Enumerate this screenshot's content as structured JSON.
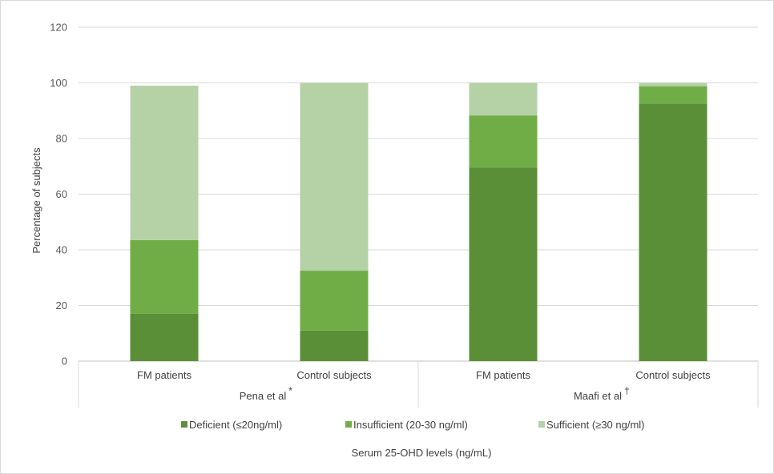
{
  "chart_data": {
    "type": "bar",
    "stacked": true,
    "ylabel": "Percentage of subjects",
    "xlabel": "Serum 25-OHD levels (ng/mL)",
    "ylim": [
      0,
      120
    ],
    "yticks": [
      0,
      20,
      40,
      60,
      80,
      100,
      120
    ],
    "grid": true,
    "legend_position": "bottom",
    "groups": [
      {
        "label": "Pena et al",
        "marker": "*",
        "categories": [
          "FM patients",
          "Control subjects"
        ]
      },
      {
        "label": "Maafi et al",
        "marker": "†",
        "categories": [
          "FM patients",
          "Control subjects"
        ]
      }
    ],
    "categories": [
      "FM patients",
      "Control subjects",
      "FM patients",
      "Control subjects"
    ],
    "series": [
      {
        "name": "Deficient (≤20ng/ml)",
        "color": "#5a8f37",
        "values": [
          17,
          11,
          69.6,
          92.6
        ]
      },
      {
        "name": "Insufficient (20-30 ng/ml)",
        "color": "#70ad47",
        "values": [
          26.5,
          21.5,
          18.7,
          6.2
        ]
      },
      {
        "name": "Sufficient (≥30 ng/ml)",
        "color": "#b5d1a6",
        "values": [
          55.5,
          67.5,
          11.7,
          1.2
        ]
      }
    ]
  }
}
